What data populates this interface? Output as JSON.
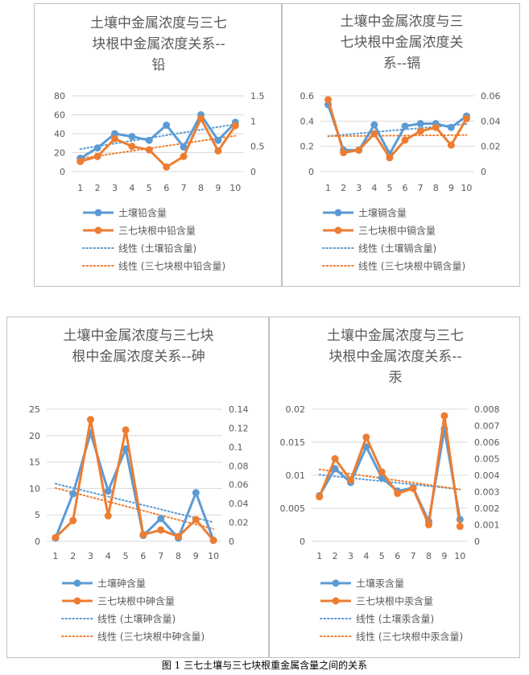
{
  "figure": {
    "caption": "图 1 三七土壤与三七块根重金属含量之间的关系"
  },
  "colors": {
    "soil": "#5b9bd5",
    "root": "#ed7d31",
    "title": "#595959",
    "axis_text": "#595959",
    "grid": "#d9d9d9"
  },
  "chart_data": [
    {
      "type": "line",
      "title": "土壤中金属浓度与三七块根中金属浓度关系--铅",
      "title_lines": [
        "土壤中金属浓度与三七",
        "块根中金属浓度关系--",
        "铅"
      ],
      "categories": [
        "1",
        "2",
        "3",
        "4",
        "5",
        "6",
        "7",
        "8",
        "9",
        "10"
      ],
      "y_left": {
        "ylim": [
          0,
          80
        ],
        "ticks": [
          "0",
          "20",
          "40",
          "60",
          "80"
        ]
      },
      "y_right": {
        "ylim": [
          0,
          1.5
        ],
        "ticks": [
          "0",
          "0.5",
          "1",
          "1.5"
        ]
      },
      "series": [
        {
          "name": "土壤铅含量",
          "axis": "left",
          "values": [
            14,
            25,
            40,
            37,
            33,
            49,
            26,
            60,
            33,
            52
          ]
        },
        {
          "name": "三七块根中铅含量",
          "axis": "right",
          "values": [
            0.2,
            0.3,
            0.65,
            0.5,
            0.43,
            0.09,
            0.3,
            1.05,
            0.41,
            0.91
          ]
        }
      ],
      "trendlines": [
        {
          "name": "线性 (土壤铅含量)",
          "of": "土壤铅含量",
          "style": "dotted"
        },
        {
          "name": "线性 (三七块根中铅含量)",
          "of": "三七块根中铅含量",
          "style": "dotted"
        }
      ],
      "legend_position": "bottom",
      "grid": true
    },
    {
      "type": "line",
      "title": "土壤中金属浓度与三七块根中金属浓度关系--镉",
      "title_lines": [
        "土壤中金属浓度与三",
        "七块根中金属浓度关",
        "系--镉"
      ],
      "categories": [
        "1",
        "2",
        "3",
        "4",
        "5",
        "6",
        "7",
        "8",
        "9",
        "10"
      ],
      "y_left": {
        "ylim": [
          0,
          0.6
        ],
        "ticks": [
          "0",
          "0.2",
          "0.4",
          "0.6"
        ]
      },
      "y_right": {
        "ylim": [
          0,
          0.06
        ],
        "ticks": [
          "0",
          "0.02",
          "0.04",
          "0.06"
        ]
      },
      "series": [
        {
          "name": "土壤镉含量",
          "axis": "left",
          "values": [
            0.53,
            0.17,
            0.17,
            0.37,
            0.14,
            0.36,
            0.38,
            0.38,
            0.35,
            0.44
          ]
        },
        {
          "name": "三七块根中镉含量",
          "axis": "right",
          "values": [
            0.057,
            0.015,
            0.017,
            0.03,
            0.011,
            0.025,
            0.032,
            0.035,
            0.021,
            0.042
          ]
        }
      ],
      "trendlines": [
        {
          "name": "线性 (土壤镉含量)",
          "of": "土壤镉含量",
          "style": "dotted"
        },
        {
          "name": "线性 (三七块根中镉含量)",
          "of": "三七块根中镉含量",
          "style": "dotted"
        }
      ],
      "legend_position": "bottom",
      "grid": true
    },
    {
      "type": "line",
      "title": "土壤中金属浓度与三七块根中金属浓度关系--砷",
      "title_lines": [
        "土壤中金属浓度与三七块",
        "根中金属浓度关系--砷"
      ],
      "categories": [
        "1",
        "2",
        "3",
        "4",
        "5",
        "6",
        "7",
        "8",
        "9",
        "10"
      ],
      "y_left": {
        "ylim": [
          0,
          25
        ],
        "ticks": [
          "0",
          "5",
          "10",
          "15",
          "20",
          "25"
        ]
      },
      "y_right": {
        "ylim": [
          0,
          0.14
        ],
        "ticks": [
          "0",
          "0.02",
          "0.04",
          "0.06",
          "0.08",
          "0.1",
          "0.12",
          "0.14"
        ]
      },
      "series": [
        {
          "name": "土壤砷含量",
          "axis": "left",
          "values": [
            0.6,
            9.0,
            20.5,
            9.5,
            17.5,
            1.1,
            4.3,
            0.6,
            9.2,
            0.2
          ]
        },
        {
          "name": "三七块根中砷含量",
          "axis": "right",
          "values": [
            0.004,
            0.022,
            0.129,
            0.027,
            0.118,
            0.007,
            0.012,
            0.005,
            0.023,
            0.001
          ]
        }
      ],
      "trendlines": [
        {
          "name": "线性 (土壤砷含量)",
          "of": "土壤砷含量",
          "style": "dotted"
        },
        {
          "name": "线性 (三七块根中砷含量)",
          "of": "三七块根中砷含量",
          "style": "dotted"
        }
      ],
      "legend_position": "bottom",
      "grid": true
    },
    {
      "type": "line",
      "title": "土壤中金属浓度与三七块根中金属浓度关系--汞",
      "title_lines": [
        "土壤中金属浓度与三七",
        "块根中金属浓度关系--",
        "汞"
      ],
      "categories": [
        "1",
        "2",
        "3",
        "4",
        "5",
        "6",
        "7",
        "8",
        "9",
        "10"
      ],
      "y_left": {
        "ylim": [
          0,
          0.02
        ],
        "ticks": [
          "0",
          "0.005",
          "0.01",
          "0.015",
          "0.02"
        ]
      },
      "y_right": {
        "ylim": [
          0,
          0.008
        ],
        "ticks": [
          "0",
          "0.001",
          "0.002",
          "0.003",
          "0.004",
          "0.005",
          "0.006",
          "0.007",
          "0.008"
        ]
      },
      "series": [
        {
          "name": "土壤汞含量",
          "axis": "left",
          "values": [
            0.0069,
            0.011,
            0.0089,
            0.0143,
            0.0096,
            0.0076,
            0.0081,
            0.003,
            0.017,
            0.0033
          ]
        },
        {
          "name": "三七块根中汞含量",
          "axis": "right",
          "values": [
            0.0027,
            0.005,
            0.0037,
            0.0063,
            0.0042,
            0.0029,
            0.0032,
            0.001,
            0.0076,
            0.0009
          ]
        }
      ],
      "trendlines": [
        {
          "name": "线性 (土壤汞含量)",
          "of": "土壤汞含量",
          "style": "dotted"
        },
        {
          "name": "线性 (三七块根中汞含量)",
          "of": "三七块根中汞含量",
          "style": "dotted"
        }
      ],
      "legend_position": "bottom",
      "grid": true
    }
  ]
}
